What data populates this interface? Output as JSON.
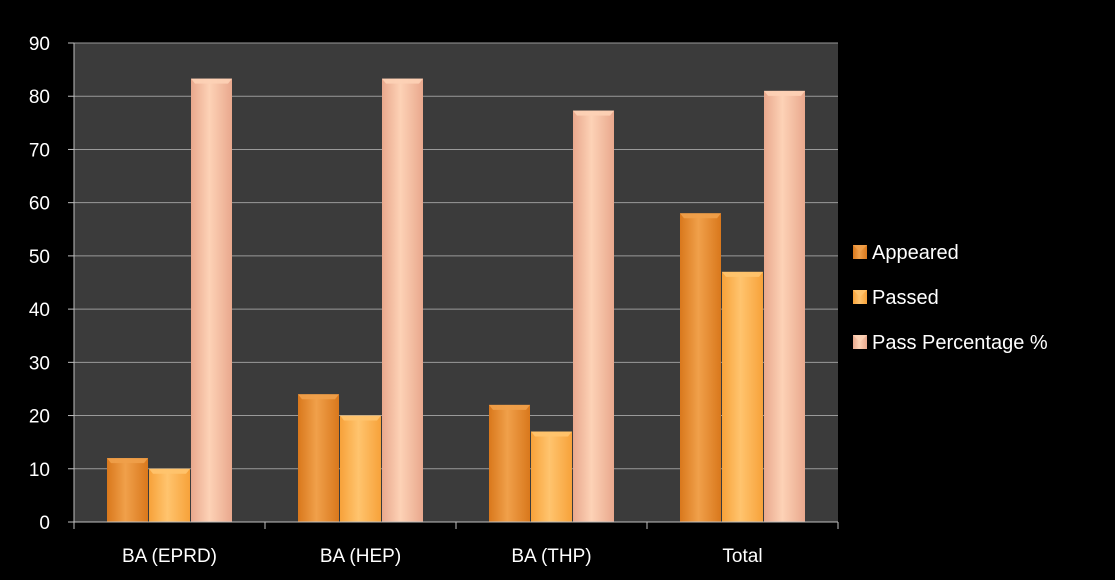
{
  "chart_data": {
    "type": "bar",
    "categories": [
      "BA (EPRD)",
      "BA (HEP)",
      "BA (THP)",
      "Total"
    ],
    "series": [
      {
        "name": "Appeared",
        "values": [
          12,
          24,
          22,
          58
        ]
      },
      {
        "name": "Passed",
        "values": [
          10,
          20,
          17,
          47
        ]
      },
      {
        "name": "Pass Percentage %",
        "values": [
          83.3,
          83.3,
          77.3,
          81
        ]
      }
    ],
    "ylim": [
      0,
      90
    ],
    "yticks": [
      0,
      10,
      20,
      30,
      40,
      50,
      60,
      70,
      80,
      90
    ],
    "grid": true,
    "legend_position": "right",
    "colors": {
      "page_background": "#000000",
      "plot_background": "#3b3b3b",
      "gridline": "#9a9a9a",
      "series": [
        "#d9781c",
        "#f7a23a",
        "#e9a88d"
      ],
      "series_light": [
        "#f0a04a",
        "#ffc46e",
        "#fdd2b6"
      ]
    }
  }
}
